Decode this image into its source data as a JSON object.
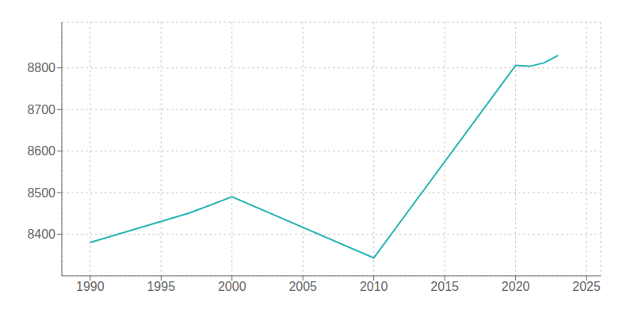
{
  "chart_data": {
    "type": "line",
    "x": [
      1990,
      1997,
      2000,
      2010,
      2020,
      2021,
      2022,
      2023
    ],
    "values": [
      8380,
      8451,
      8490,
      8343,
      8806,
      8804,
      8812,
      8830
    ],
    "color": "#2ab5b5",
    "xlim": [
      1988,
      2026
    ],
    "ylim": [
      8300,
      8910
    ],
    "xticks": [
      1990,
      1995,
      2000,
      2005,
      2010,
      2015,
      2020,
      2025
    ],
    "yticks": [
      8400,
      8500,
      8600,
      8700,
      8800
    ],
    "grid": true
  }
}
